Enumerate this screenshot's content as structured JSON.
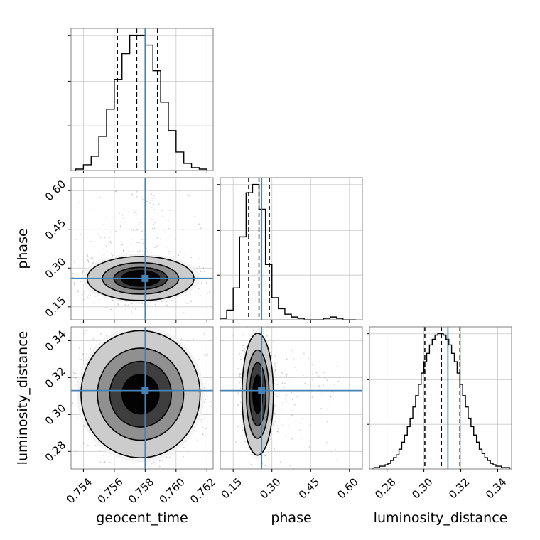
{
  "chart_data": {
    "type": "corner",
    "parameters": [
      "geocent_time",
      "phase",
      "luminosity_distance"
    ],
    "truths": {
      "geocent_time": 0.758,
      "phase": 0.26,
      "luminosity_distance": 0.313
    },
    "colors": {
      "truth": "#4682b4",
      "hist": "#000000",
      "grid": "#c8c8c8",
      "spine": "#808080",
      "points": "#7f7f7f"
    },
    "grid": true,
    "axes": {
      "geocent_time": {
        "label": "geocent_time",
        "range": [
          0.7532,
          0.7624
        ],
        "ticks": [
          0.754,
          0.756,
          0.758,
          0.76,
          0.762
        ],
        "tick_labels": [
          "0.754",
          "0.756",
          "0.758",
          "0.760",
          "0.762"
        ]
      },
      "phase": {
        "label": "phase",
        "range": [
          0.1,
          0.65
        ],
        "ticks": [
          0.15,
          0.3,
          0.45,
          0.6
        ],
        "tick_labels": [
          "0.15",
          "0.30",
          "0.45",
          "0.60"
        ]
      },
      "luminosity_distance": {
        "label": "luminosity_distance",
        "range": [
          0.2705,
          0.3475
        ],
        "ticks": [
          0.28,
          0.3,
          0.32,
          0.34
        ],
        "tick_labels": [
          "0.28",
          "0.30",
          "0.32",
          "0.34"
        ]
      }
    },
    "histograms": {
      "geocent_time": {
        "edges": [
          0.7535,
          0.754,
          0.7545,
          0.755,
          0.7555,
          0.756,
          0.7565,
          0.757,
          0.7575,
          0.758,
          0.7585,
          0.759,
          0.7595,
          0.76,
          0.7605,
          0.761,
          0.7615,
          0.762
        ],
        "counts": [
          1,
          4,
          10,
          24,
          43,
          64,
          82,
          95,
          95,
          88,
          70,
          48,
          28,
          13,
          5,
          2,
          1
        ],
        "quantiles": [
          0.7562,
          0.75745,
          0.7588
        ]
      },
      "phase": {
        "edges": [
          0.1,
          0.125,
          0.15,
          0.175,
          0.2,
          0.225,
          0.25,
          0.275,
          0.3,
          0.325,
          0.35,
          0.375,
          0.4,
          0.425,
          0.45,
          0.475,
          0.5,
          0.525,
          0.55,
          0.575,
          0.6,
          0.625
        ],
        "counts": [
          1,
          7,
          23,
          60,
          92,
          98,
          80,
          40,
          16,
          8,
          4,
          2,
          1,
          0,
          0,
          0,
          1,
          2,
          1,
          0,
          0
        ],
        "quantiles": [
          0.21,
          0.25,
          0.29
        ]
      },
      "luminosity_distance": {
        "edges": [
          0.2715,
          0.273,
          0.2745,
          0.276,
          0.2775,
          0.279,
          0.2805,
          0.282,
          0.2835,
          0.285,
          0.2865,
          0.288,
          0.2895,
          0.291,
          0.2925,
          0.294,
          0.2955,
          0.297,
          0.2985,
          0.3,
          0.3015,
          0.303,
          0.3045,
          0.306,
          0.3075,
          0.309,
          0.3105,
          0.312,
          0.3135,
          0.315,
          0.3165,
          0.318,
          0.3195,
          0.321,
          0.3225,
          0.324,
          0.3255,
          0.327,
          0.3285,
          0.33,
          0.3315,
          0.333,
          0.3345,
          0.336,
          0.3375,
          0.339,
          0.3405,
          0.342,
          0.3435,
          0.345,
          0.3465
        ],
        "counts": [
          0,
          1,
          1,
          2,
          2,
          3,
          4,
          6,
          8,
          10,
          14,
          19,
          24,
          30,
          36,
          44,
          52,
          60,
          68,
          76,
          82,
          88,
          92,
          95,
          96,
          96,
          95,
          92,
          88,
          82,
          76,
          68,
          60,
          52,
          44,
          36,
          30,
          24,
          19,
          14,
          11,
          8,
          6,
          4,
          3,
          2,
          2,
          1,
          1,
          1
        ],
        "quantiles": [
          0.3005,
          0.3095,
          0.3195
        ]
      }
    },
    "pairs": [
      {
        "x": "geocent_time",
        "y": "phase",
        "mean": [
          0.7577,
          0.26
        ],
        "sd": [
          0.0013,
          0.032
        ],
        "rho": 0.0,
        "levels": [
          1.0,
          1.4,
          2.0,
          2.8
        ]
      },
      {
        "x": "geocent_time",
        "y": "luminosity_distance",
        "mean": [
          0.7577,
          0.311
        ],
        "sd": [
          0.0014,
          0.0125
        ],
        "rho": 0.0,
        "levels": [
          0.9,
          1.5,
          2.1,
          2.9
        ]
      },
      {
        "x": "phase",
        "y": "luminosity_distance",
        "mean": [
          0.245,
          0.311
        ],
        "sd": [
          0.022,
          0.012
        ],
        "rho": 0.0,
        "levels": [
          0.9,
          1.5,
          2.1,
          2.9
        ]
      }
    ]
  }
}
